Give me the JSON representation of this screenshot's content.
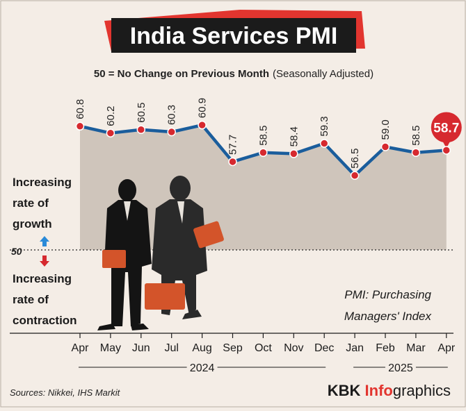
{
  "header": {
    "title": "India Services PMI",
    "subtitle_bold": "50 = No Change on Previous Month",
    "subtitle_normal": "(Seasonally Adjusted)"
  },
  "annotations": {
    "growth": [
      "Increasing",
      "rate of",
      "growth"
    ],
    "contraction": [
      "Increasing",
      "rate of",
      "contraction"
    ],
    "fifty_label": "50",
    "definition": [
      "PMI: Purchasing",
      "Managers' Index"
    ]
  },
  "footer": {
    "sources": "Sources: Nikkei, IHS Markit",
    "brand_a": "KBK ",
    "brand_b": "Info",
    "brand_c": "graphics"
  },
  "colors": {
    "background": "#f4ede6",
    "area_fill": "#cfc5bb",
    "line": "#1a5d9c",
    "marker": "#d6292f",
    "title_bar": "#1b1b1b",
    "accent_red": "#e2352f",
    "suitcase": "#d3542a",
    "arrow_up": "#2a8ad8",
    "arrow_down": "#d6292f"
  },
  "chart_data": {
    "type": "area",
    "title": "India Services PMI",
    "categories": [
      "Apr",
      "May",
      "Jun",
      "Jul",
      "Aug",
      "Sep",
      "Oct",
      "Nov",
      "Dec",
      "Jan",
      "Feb",
      "Mar",
      "Apr"
    ],
    "values": [
      60.8,
      60.2,
      60.5,
      60.3,
      60.9,
      57.7,
      58.5,
      58.4,
      59.3,
      56.5,
      59.0,
      58.5,
      58.7
    ],
    "year_groups": [
      {
        "label": "2024",
        "from": 0,
        "to": 8
      },
      {
        "label": "2025",
        "from": 9,
        "to": 12
      }
    ],
    "reference_line": 50,
    "highlight_index": 12,
    "grid": false
  }
}
